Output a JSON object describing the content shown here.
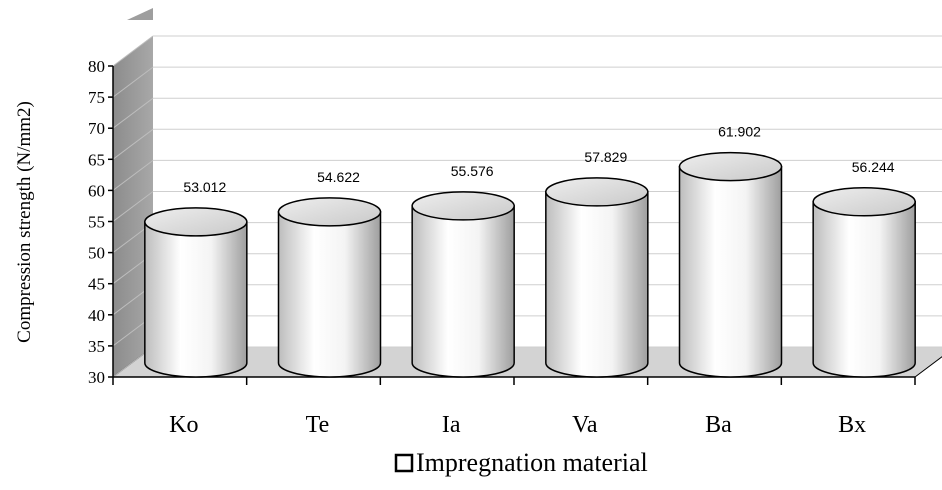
{
  "chart_data": {
    "type": "bar",
    "style": "3d-cylinder",
    "categories": [
      "Ko",
      "Te",
      "Ia",
      "Va",
      "Ba",
      "Bx"
    ],
    "series": [
      {
        "name": "Impregnation material",
        "values": [
          53.012,
          54.622,
          55.576,
          57.829,
          61.902,
          56.244
        ]
      }
    ],
    "data_labels": [
      "53.012",
      "54.622",
      "55.576",
      "57.829",
      "61.902",
      "56.244"
    ],
    "ylabel": "Compression strength (N/mm2)",
    "xlabel": "",
    "ylim": [
      30,
      80
    ],
    "yticks": [
      "30",
      "35",
      "40",
      "45",
      "50",
      "55",
      "60",
      "65",
      "70",
      "75",
      "80"
    ],
    "grid": true,
    "legend": {
      "position": "bottom-center",
      "entries": [
        "Impregnation material"
      ]
    },
    "colors": {
      "bar_fill": "#ffffff",
      "wall": "#9a9a9a",
      "floor": "#d0d0d0",
      "grid": "#c8c8c8"
    }
  }
}
